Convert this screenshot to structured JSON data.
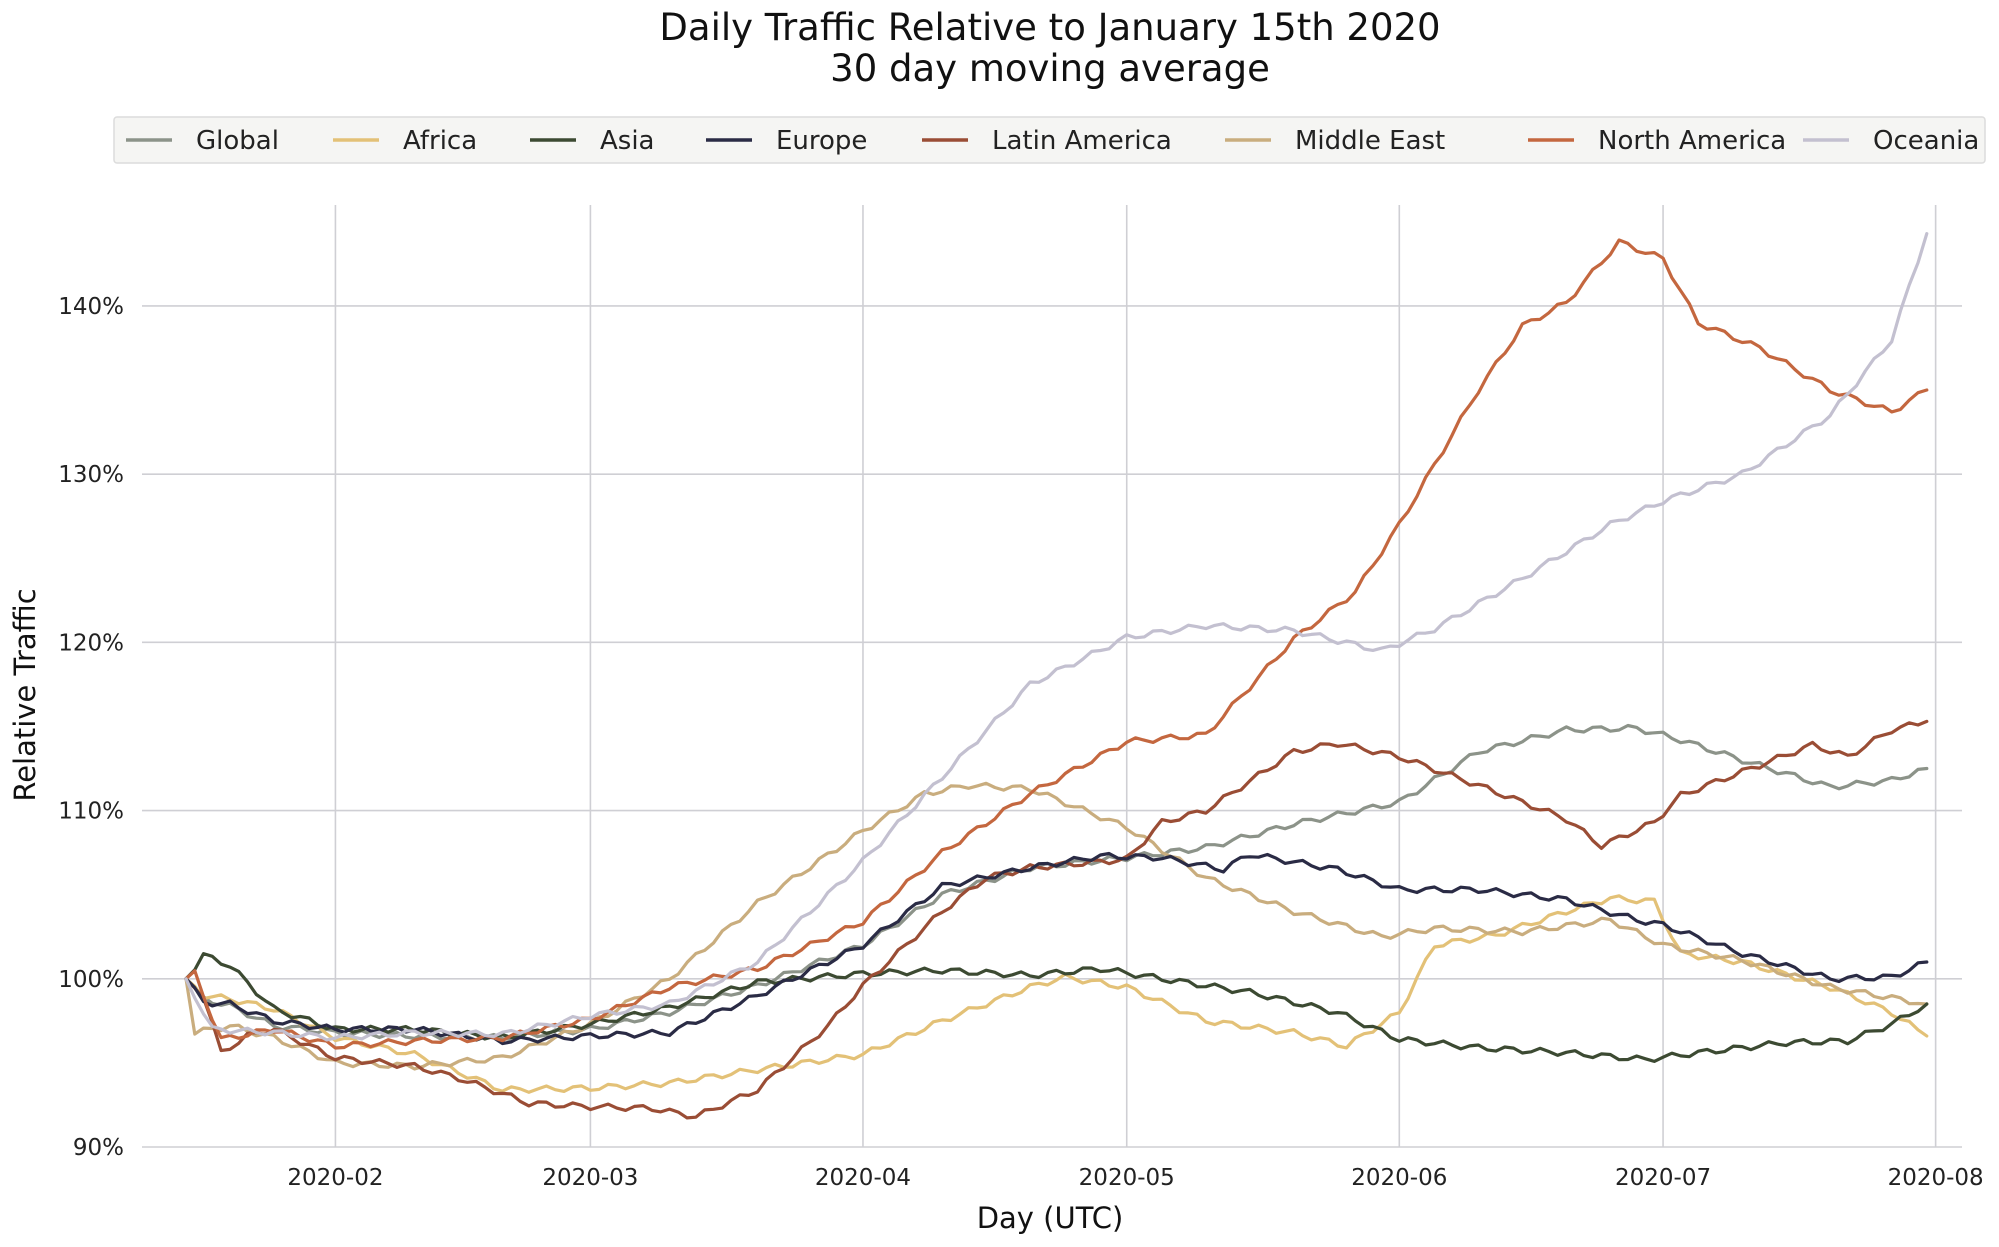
{
  "chart_data": {
    "type": "line",
    "title": "Daily Traffic Relative to January 15th 2020",
    "subtitle": "30 day moving average",
    "xlabel": "Day (UTC)",
    "ylabel": "Relative Traffic",
    "xlim": [
      "2020-01-10",
      "2020-08-04"
    ],
    "ylim": [
      90,
      146
    ],
    "x_ticks": [
      "2020-02",
      "2020-03",
      "2020-04",
      "2020-05",
      "2020-06",
      "2020-07",
      "2020-08"
    ],
    "x_tick_dates": [
      "2020-02-01",
      "2020-03-01",
      "2020-04-01",
      "2020-05-01",
      "2020-06-01",
      "2020-07-01",
      "2020-08-01"
    ],
    "y_ticks": [
      90,
      100,
      110,
      120,
      130,
      140
    ],
    "y_tick_labels": [
      "90%",
      "100%",
      "110%",
      "120%",
      "130%",
      "140%"
    ],
    "grid": true,
    "legend_placement": "top-center",
    "series": [
      {
        "name": "Global",
        "color": "#8c9389",
        "points": [
          [
            "2020-01-15",
            100
          ],
          [
            "2020-01-17",
            98.8
          ],
          [
            "2020-01-20",
            98.4
          ],
          [
            "2020-01-25",
            97.2
          ],
          [
            "2020-02-01",
            96.8
          ],
          [
            "2020-02-10",
            96.6
          ],
          [
            "2020-02-20",
            96.5
          ],
          [
            "2020-03-01",
            97.0
          ],
          [
            "2020-03-10",
            98.0
          ],
          [
            "2020-03-20",
            99.6
          ],
          [
            "2020-04-01",
            102.0
          ],
          [
            "2020-04-10",
            105.0
          ],
          [
            "2020-04-20",
            106.6
          ],
          [
            "2020-05-01",
            107.2
          ],
          [
            "2020-05-10",
            107.8
          ],
          [
            "2020-05-20",
            109.2
          ],
          [
            "2020-06-01",
            110.5
          ],
          [
            "2020-06-10",
            113.5
          ],
          [
            "2020-06-20",
            114.8
          ],
          [
            "2020-06-28",
            114.9
          ],
          [
            "2020-07-03",
            114.2
          ],
          [
            "2020-07-10",
            113.0
          ],
          [
            "2020-07-20",
            111.4
          ],
          [
            "2020-07-27",
            111.8
          ],
          [
            "2020-07-31",
            112.5
          ]
        ]
      },
      {
        "name": "Africa",
        "color": "#e3c177",
        "points": [
          [
            "2020-01-15",
            100
          ],
          [
            "2020-01-17",
            99.0
          ],
          [
            "2020-01-20",
            98.8
          ],
          [
            "2020-01-25",
            98.2
          ],
          [
            "2020-02-01",
            96.5
          ],
          [
            "2020-02-10",
            95.5
          ],
          [
            "2020-02-20",
            93.4
          ],
          [
            "2020-03-01",
            93.5
          ],
          [
            "2020-03-10",
            93.8
          ],
          [
            "2020-03-20",
            94.6
          ],
          [
            "2020-04-01",
            95.5
          ],
          [
            "2020-04-10",
            97.5
          ],
          [
            "2020-04-20",
            99.5
          ],
          [
            "2020-04-24",
            100.1
          ],
          [
            "2020-05-01",
            99.5
          ],
          [
            "2020-05-10",
            97.5
          ],
          [
            "2020-05-20",
            96.8
          ],
          [
            "2020-05-26",
            96.0
          ],
          [
            "2020-06-01",
            98.0
          ],
          [
            "2020-06-05",
            102.0
          ],
          [
            "2020-06-12",
            102.6
          ],
          [
            "2020-06-20",
            104.0
          ],
          [
            "2020-06-25",
            104.8
          ],
          [
            "2020-06-30",
            104.6
          ],
          [
            "2020-07-03",
            101.5
          ],
          [
            "2020-07-10",
            101.0
          ],
          [
            "2020-07-20",
            99.5
          ],
          [
            "2020-07-27",
            98.0
          ],
          [
            "2020-07-31",
            96.6
          ]
        ]
      },
      {
        "name": "Asia",
        "color": "#3c4a32",
        "points": [
          [
            "2020-01-15",
            100
          ],
          [
            "2020-01-17",
            101.4
          ],
          [
            "2020-01-20",
            100.8
          ],
          [
            "2020-01-25",
            98.2
          ],
          [
            "2020-02-01",
            97.0
          ],
          [
            "2020-02-10",
            97.0
          ],
          [
            "2020-02-20",
            96.5
          ],
          [
            "2020-03-01",
            97.3
          ],
          [
            "2020-03-10",
            98.3
          ],
          [
            "2020-03-20",
            99.8
          ],
          [
            "2020-04-01",
            100.3
          ],
          [
            "2020-04-10",
            100.5
          ],
          [
            "2020-04-20",
            100.2
          ],
          [
            "2020-04-28",
            100.6
          ],
          [
            "2020-05-05",
            100.0
          ],
          [
            "2020-05-15",
            99.2
          ],
          [
            "2020-05-25",
            98.0
          ],
          [
            "2020-06-01",
            96.4
          ],
          [
            "2020-06-10",
            95.9
          ],
          [
            "2020-06-20",
            95.6
          ],
          [
            "2020-06-29",
            95.2
          ],
          [
            "2020-07-05",
            95.6
          ],
          [
            "2020-07-15",
            96.2
          ],
          [
            "2020-07-22",
            96.3
          ],
          [
            "2020-07-27",
            97.3
          ],
          [
            "2020-07-31",
            98.5
          ]
        ]
      },
      {
        "name": "Europe",
        "color": "#2a2b45",
        "points": [
          [
            "2020-01-15",
            100
          ],
          [
            "2020-01-17",
            98.6
          ],
          [
            "2020-01-20",
            98.5
          ],
          [
            "2020-01-25",
            97.5
          ],
          [
            "2020-02-01",
            97.0
          ],
          [
            "2020-02-10",
            97.0
          ],
          [
            "2020-02-20",
            96.3
          ],
          [
            "2020-03-01",
            96.6
          ],
          [
            "2020-03-10",
            96.8
          ],
          [
            "2020-03-20",
            99.0
          ],
          [
            "2020-04-01",
            102.0
          ],
          [
            "2020-04-10",
            105.5
          ],
          [
            "2020-04-20",
            106.6
          ],
          [
            "2020-04-28",
            107.3
          ],
          [
            "2020-05-05",
            107.2
          ],
          [
            "2020-05-12",
            106.5
          ],
          [
            "2020-05-15",
            107.4
          ],
          [
            "2020-05-25",
            106.5
          ],
          [
            "2020-06-01",
            105.3
          ],
          [
            "2020-06-10",
            105.3
          ],
          [
            "2020-06-20",
            104.7
          ],
          [
            "2020-06-28",
            103.5
          ],
          [
            "2020-07-01",
            103.2
          ],
          [
            "2020-07-10",
            101.5
          ],
          [
            "2020-07-20",
            100.0
          ],
          [
            "2020-07-27",
            100.1
          ],
          [
            "2020-07-31",
            101.0
          ]
        ]
      },
      {
        "name": "Latin America",
        "color": "#9a4d35",
        "points": [
          [
            "2020-01-15",
            100
          ],
          [
            "2020-01-17",
            99.0
          ],
          [
            "2020-01-19",
            95.6
          ],
          [
            "2020-01-22",
            96.6
          ],
          [
            "2020-01-25",
            97.0
          ],
          [
            "2020-02-01",
            95.3
          ],
          [
            "2020-02-10",
            94.8
          ],
          [
            "2020-02-15",
            94.1
          ],
          [
            "2020-02-23",
            92.6
          ],
          [
            "2020-03-01",
            92.4
          ],
          [
            "2020-03-08",
            92.3
          ],
          [
            "2020-03-13",
            91.8
          ],
          [
            "2020-03-20",
            93.4
          ],
          [
            "2020-03-28",
            97.2
          ],
          [
            "2020-04-01",
            99.6
          ],
          [
            "2020-04-10",
            104.0
          ],
          [
            "2020-04-15",
            106.0
          ],
          [
            "2020-04-20",
            106.6
          ],
          [
            "2020-05-01",
            107.1
          ],
          [
            "2020-05-05",
            109.3
          ],
          [
            "2020-05-10",
            110.0
          ],
          [
            "2020-05-20",
            113.5
          ],
          [
            "2020-05-25",
            114.0
          ],
          [
            "2020-06-01",
            113.2
          ],
          [
            "2020-06-10",
            111.5
          ],
          [
            "2020-06-20",
            109.5
          ],
          [
            "2020-06-24",
            107.9
          ],
          [
            "2020-06-30",
            109.3
          ],
          [
            "2020-07-03",
            110.9
          ],
          [
            "2020-07-10",
            112.3
          ],
          [
            "2020-07-18",
            113.9
          ],
          [
            "2020-07-22",
            113.2
          ],
          [
            "2020-07-27",
            114.8
          ],
          [
            "2020-07-31",
            115.3
          ]
        ]
      },
      {
        "name": "Middle East",
        "color": "#c9ad7e",
        "points": [
          [
            "2020-01-15",
            100
          ],
          [
            "2020-01-16",
            96.8
          ],
          [
            "2020-01-20",
            97.2
          ],
          [
            "2020-01-25",
            96.5
          ],
          [
            "2020-02-01",
            95.0
          ],
          [
            "2020-02-10",
            94.8
          ],
          [
            "2020-02-20",
            95.3
          ],
          [
            "2020-03-01",
            97.3
          ],
          [
            "2020-03-10",
            100.0
          ],
          [
            "2020-03-20",
            104.5
          ],
          [
            "2020-04-01",
            108.8
          ],
          [
            "2020-04-08",
            111.0
          ],
          [
            "2020-04-13",
            111.5
          ],
          [
            "2020-04-20",
            111.3
          ],
          [
            "2020-05-01",
            109.0
          ],
          [
            "2020-05-10",
            106.0
          ],
          [
            "2020-05-20",
            104.0
          ],
          [
            "2020-05-30",
            102.5
          ],
          [
            "2020-06-05",
            103.0
          ],
          [
            "2020-06-15",
            102.8
          ],
          [
            "2020-06-25",
            103.5
          ],
          [
            "2020-07-01",
            102.0
          ],
          [
            "2020-07-10",
            101.1
          ],
          [
            "2020-07-20",
            99.5
          ],
          [
            "2020-07-31",
            98.5
          ]
        ]
      },
      {
        "name": "North America",
        "color": "#c4673f",
        "points": [
          [
            "2020-01-15",
            100
          ],
          [
            "2020-01-16",
            100.3
          ],
          [
            "2020-01-19",
            96.4
          ],
          [
            "2020-01-25",
            97.0
          ],
          [
            "2020-02-01",
            96.0
          ],
          [
            "2020-02-10",
            96.3
          ],
          [
            "2020-02-20",
            96.5
          ],
          [
            "2020-03-01",
            97.6
          ],
          [
            "2020-03-10",
            99.5
          ],
          [
            "2020-03-20",
            100.6
          ],
          [
            "2020-04-01",
            103.4
          ],
          [
            "2020-04-10",
            107.5
          ],
          [
            "2020-04-20",
            111.0
          ],
          [
            "2020-05-01",
            114.1
          ],
          [
            "2020-05-10",
            114.5
          ],
          [
            "2020-05-20",
            120.2
          ],
          [
            "2020-05-27",
            123.0
          ],
          [
            "2020-06-01",
            127.0
          ],
          [
            "2020-06-10",
            135.0
          ],
          [
            "2020-06-15",
            138.8
          ],
          [
            "2020-06-20",
            140.2
          ],
          [
            "2020-06-26",
            143.8
          ],
          [
            "2020-07-01",
            142.8
          ],
          [
            "2020-07-05",
            139.0
          ],
          [
            "2020-07-12",
            137.5
          ],
          [
            "2020-07-20",
            135.0
          ],
          [
            "2020-07-27",
            133.7
          ],
          [
            "2020-07-31",
            135.0
          ]
        ]
      },
      {
        "name": "Oceania",
        "color": "#c3c0d0",
        "points": [
          [
            "2020-01-15",
            100
          ],
          [
            "2020-01-18",
            97.0
          ],
          [
            "2020-01-25",
            96.8
          ],
          [
            "2020-02-01",
            96.5
          ],
          [
            "2020-02-10",
            96.8
          ],
          [
            "2020-02-20",
            96.7
          ],
          [
            "2020-03-01",
            97.8
          ],
          [
            "2020-03-10",
            98.5
          ],
          [
            "2020-03-20",
            101.0
          ],
          [
            "2020-04-01",
            107.0
          ],
          [
            "2020-04-10",
            112.0
          ],
          [
            "2020-04-20",
            117.5
          ],
          [
            "2020-05-01",
            120.3
          ],
          [
            "2020-05-10",
            121.0
          ],
          [
            "2020-05-20",
            120.7
          ],
          [
            "2020-05-30",
            119.5
          ],
          [
            "2020-06-05",
            120.8
          ],
          [
            "2020-06-15",
            123.8
          ],
          [
            "2020-06-25",
            127.0
          ],
          [
            "2020-07-01",
            128.4
          ],
          [
            "2020-07-10",
            130.0
          ],
          [
            "2020-07-20",
            133.5
          ],
          [
            "2020-07-27",
            138.0
          ],
          [
            "2020-07-31",
            144.3
          ]
        ]
      }
    ]
  }
}
